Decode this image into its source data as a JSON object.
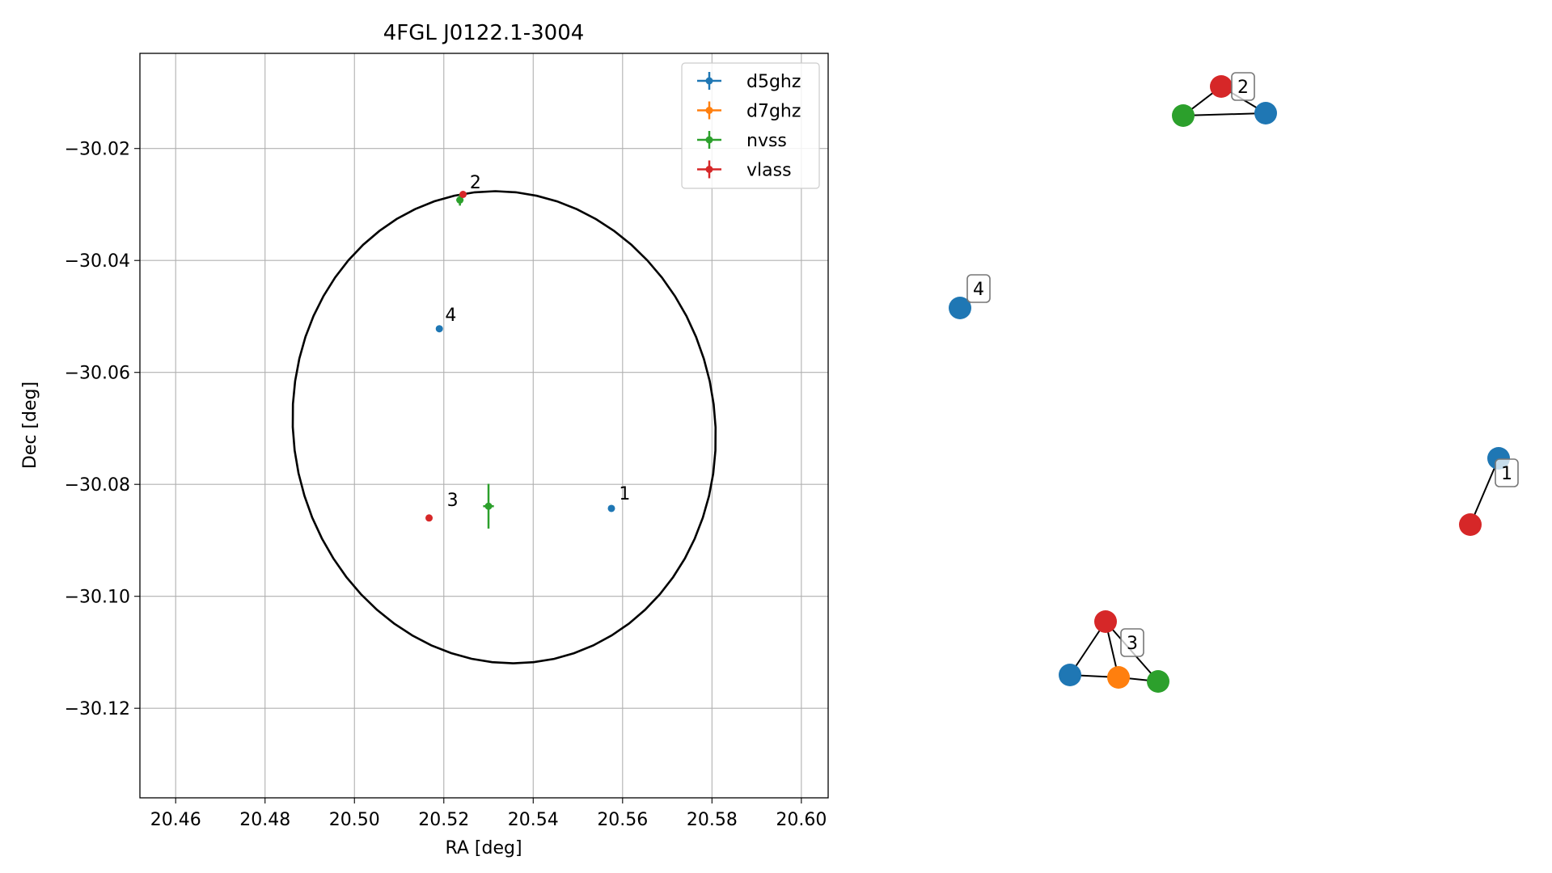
{
  "chart_data": [
    {
      "type": "scatter",
      "title": "4FGL J0122.1-3004",
      "xlabel": "RA [deg]",
      "ylabel": "Dec [deg]",
      "xlim": [
        20.452,
        20.606
      ],
      "ylim": [
        -30.136,
        -30.003
      ],
      "xticks": [
        20.46,
        20.48,
        20.5,
        20.52,
        20.54,
        20.56,
        20.58,
        20.6
      ],
      "xtick_labels": [
        "20.46",
        "20.48",
        "20.50",
        "20.52",
        "20.54",
        "20.56",
        "20.58",
        "20.60"
      ],
      "yticks": [
        -30.02,
        -30.04,
        -30.06,
        -30.08,
        -30.1,
        -30.12
      ],
      "ytick_labels": [
        "−30.02",
        "−30.04",
        "−30.06",
        "−30.08",
        "−30.10",
        "−30.12"
      ],
      "grid": true,
      "legend": "top-right",
      "series": [
        {
          "name": "d5ghz",
          "color": "#1f77b4",
          "points": [
            {
              "x": 20.5575,
              "y": -30.0843,
              "xerr": 0.0003,
              "yerr": 0.0003
            },
            {
              "x": 20.519,
              "y": -30.0522,
              "xerr": 0.0003,
              "yerr": 0.0003
            }
          ]
        },
        {
          "name": "d7ghz",
          "color": "#ff7f0e",
          "points": []
        },
        {
          "name": "nvss",
          "color": "#2ca02c",
          "points": [
            {
              "x": 20.5236,
              "y": -30.0292,
              "xerr": 0.0008,
              "yerr": 0.001
            },
            {
              "x": 20.53,
              "y": -30.0839,
              "xerr": 0.0012,
              "yerr": 0.004
            }
          ]
        },
        {
          "name": "vlass",
          "color": "#d62728",
          "points": [
            {
              "x": 20.5243,
              "y": -30.0282,
              "xerr": 0.0003,
              "yerr": 0.0003
            },
            {
              "x": 20.5167,
              "y": -30.086,
              "xerr": 0.0003,
              "yerr": 0.0003
            }
          ]
        }
      ],
      "annotations": [
        {
          "text": "1",
          "x": 20.5592,
          "y": -30.0827
        },
        {
          "text": "2",
          "x": 20.5258,
          "y": -30.0271
        },
        {
          "text": "3",
          "x": 20.5207,
          "y": -30.0839
        },
        {
          "text": "4",
          "x": 20.5203,
          "y": -30.0508
        }
      ],
      "ellipse": {
        "center": [
          20.5335,
          -30.0698
        ],
        "semi_axis_ra": 0.0475,
        "semi_axis_dec": 0.042,
        "tilt_deg": -10,
        "color": "#000000"
      }
    },
    {
      "type": "network",
      "node_colors": {
        "d5ghz": "#1f77b4",
        "d7ghz": "#ff7f0e",
        "nvss": "#2ca02c",
        "vlass": "#d62728"
      },
      "groups": [
        {
          "label": "2",
          "nodes": [
            "vlass",
            "nvss",
            "d5ghz"
          ],
          "edges": [
            [
              0,
              1
            ],
            [
              0,
              2
            ],
            [
              1,
              2
            ]
          ]
        },
        {
          "label": "4",
          "nodes": [
            "d5ghz"
          ],
          "edges": []
        },
        {
          "label": "1",
          "nodes": [
            "d5ghz",
            "vlass"
          ],
          "edges": [
            [
              0,
              1
            ]
          ]
        },
        {
          "label": "3",
          "nodes": [
            "vlass",
            "d5ghz",
            "d7ghz",
            "nvss"
          ],
          "edges": [
            [
              0,
              1
            ],
            [
              0,
              2
            ],
            [
              0,
              3
            ],
            [
              1,
              2
            ],
            [
              2,
              3
            ]
          ]
        }
      ]
    }
  ]
}
